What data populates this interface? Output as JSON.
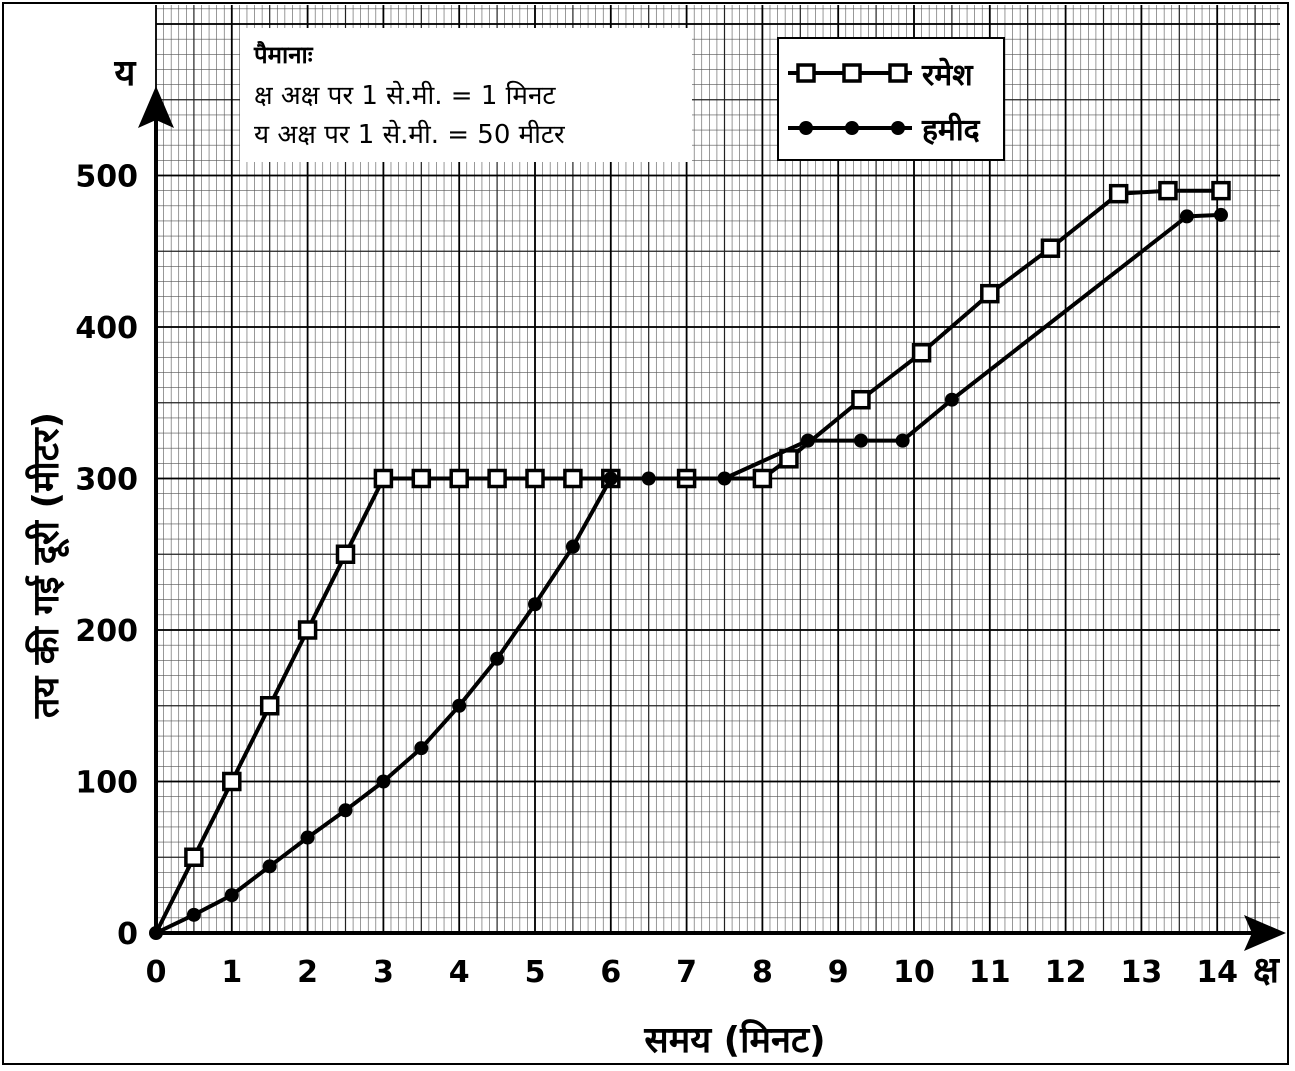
{
  "chart_data": {
    "type": "line",
    "xlabel": "समय (मिनट)",
    "ylabel": "तय की गई दूरी (मीटर)",
    "x_axis_letter": "क्ष",
    "y_axis_letter": "य",
    "xlim": [
      0,
      14
    ],
    "ylim": [
      0,
      500
    ],
    "x_ticks": [
      "0",
      "1",
      "2",
      "3",
      "4",
      "5",
      "6",
      "7",
      "8",
      "9",
      "10",
      "11",
      "12",
      "13",
      "14"
    ],
    "y_ticks": [
      "0",
      "100",
      "200",
      "300",
      "400",
      "500"
    ],
    "grid": true,
    "legend_position": "top-right",
    "scale_box": {
      "heading": "पैमानाः",
      "line1": "क्ष अक्ष पर 1 से.मी. = 1 मिनट",
      "line2": "य अक्ष पर 1 से.मी. =  50  मीटर"
    },
    "series": [
      {
        "name": "रमेश",
        "marker": "open-square",
        "points": [
          [
            0,
            0
          ],
          [
            0.5,
            50
          ],
          [
            1,
            100
          ],
          [
            1.5,
            150
          ],
          [
            2,
            200
          ],
          [
            2.5,
            250
          ],
          [
            3,
            300
          ],
          [
            3.5,
            300
          ],
          [
            4,
            300
          ],
          [
            4.5,
            300
          ],
          [
            5,
            300
          ],
          [
            5.5,
            300
          ],
          [
            6,
            300
          ],
          [
            7,
            300
          ],
          [
            8,
            300
          ],
          [
            8.35,
            313
          ],
          [
            9.3,
            352
          ],
          [
            10.1,
            383
          ],
          [
            11,
            422
          ],
          [
            11.8,
            452
          ],
          [
            12.7,
            488
          ],
          [
            13.35,
            490
          ],
          [
            14.05,
            490
          ]
        ]
      },
      {
        "name": "हमीद",
        "marker": "filled-circle",
        "points": [
          [
            0,
            0
          ],
          [
            0.5,
            12
          ],
          [
            1,
            25
          ],
          [
            1.5,
            44
          ],
          [
            2,
            63
          ],
          [
            2.5,
            81
          ],
          [
            3,
            100
          ],
          [
            3.5,
            122
          ],
          [
            4,
            150
          ],
          [
            4.5,
            181
          ],
          [
            5,
            217
          ],
          [
            5.5,
            255
          ],
          [
            6,
            300
          ],
          [
            6.5,
            300
          ],
          [
            7.5,
            300
          ],
          [
            8.6,
            325
          ],
          [
            9.3,
            325
          ],
          [
            9.85,
            325
          ],
          [
            10.5,
            352
          ],
          [
            13.6,
            473
          ],
          [
            14.05,
            474
          ]
        ]
      }
    ]
  }
}
